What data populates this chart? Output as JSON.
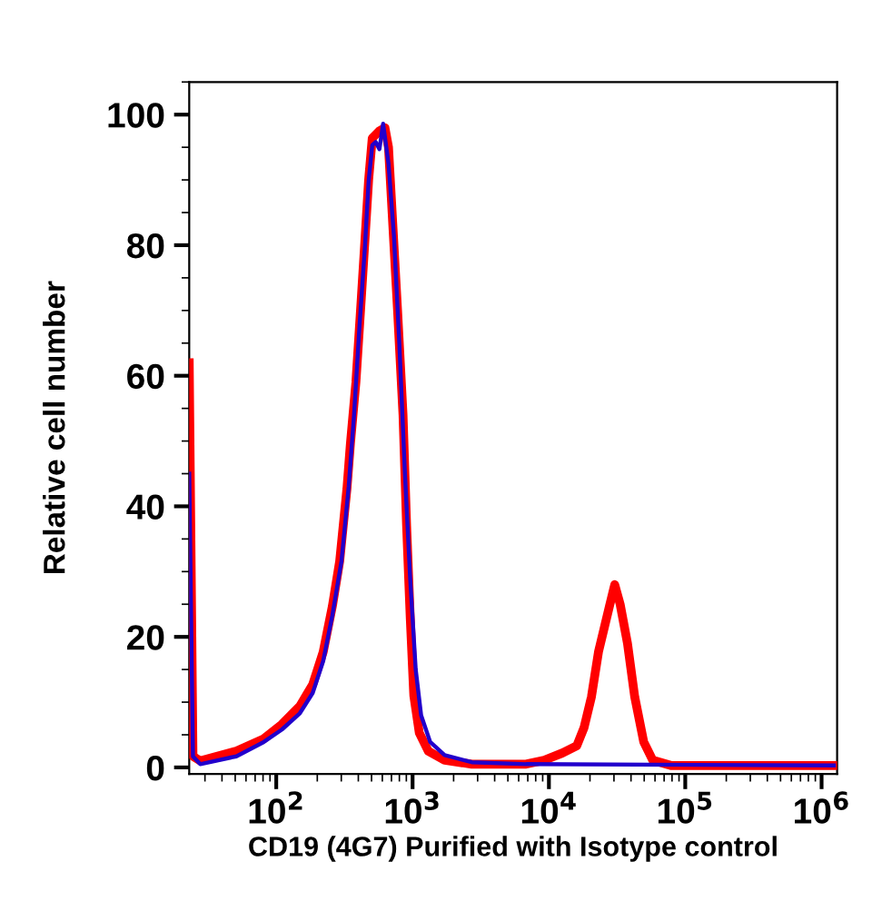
{
  "chart_data": {
    "type": "line",
    "xlabel": "CD19 (4G7) Purified with Isotype control",
    "ylabel": "Relative cell number",
    "log": "x",
    "xlim": [
      23,
      1300000
    ],
    "ylim": [
      -1,
      105
    ],
    "xticks": [
      {
        "value": 100,
        "label": "10$^{2}$"
      },
      {
        "value": 1000,
        "label": "10$^{3}$"
      },
      {
        "value": 10000,
        "label": "10$^{4}$"
      },
      {
        "value": 100000,
        "label": "10$^{5}$"
      },
      {
        "value": 1000000,
        "label": "10$^{6}$"
      }
    ],
    "yticks": [
      0,
      20,
      40,
      60,
      80,
      100
    ],
    "grid": false,
    "series": [
      {
        "color": "#2200cc",
        "x": [
          23,
          24.5,
          27.7,
          51,
          81,
          110,
          149,
          185,
          221,
          258,
          301,
          340,
          372,
          408,
          448,
          476,
          506,
          537,
          571,
          608,
          666,
          730,
          800,
          877,
          961,
          1054,
          1155,
          1346,
          1718,
          2719,
          6800,
          1230000
        ],
        "values": [
          45,
          1.7,
          0.5,
          1.7,
          3.9,
          5.8,
          8.3,
          11.4,
          16.3,
          23.3,
          31.6,
          43,
          54,
          67.6,
          80,
          89.8,
          95.3,
          95.8,
          94.7,
          98.6,
          92.5,
          81.4,
          64.8,
          45.4,
          28.8,
          15,
          8,
          3.9,
          1.9,
          0.8,
          0.5,
          0.3
        ]
      },
      {
        "color": "#ff0000",
        "x": [
          23,
          24.5,
          27.7,
          51,
          81,
          110,
          149,
          185,
          221,
          258,
          292,
          330,
          350,
          384,
          421,
          448,
          476,
          506,
          571,
          627,
          666,
          708,
          776,
          851,
          904,
          961,
          1021,
          1120,
          1305,
          1718,
          2719,
          6800,
          9230,
          12530,
          16000,
          18100,
          20500,
          23100,
          27800,
          30400,
          33300,
          37700,
          42600,
          49600,
          57800,
          78500,
          1230000
        ],
        "values": [
          62,
          1.7,
          1,
          2.5,
          4.4,
          6.6,
          9.4,
          12.7,
          17.7,
          24.7,
          31.6,
          42.7,
          49.6,
          59,
          72,
          81,
          90,
          96.4,
          97.5,
          98,
          95,
          85,
          70,
          54,
          37,
          23,
          11,
          5.3,
          2.5,
          1.1,
          0.5,
          0.5,
          1.1,
          2.2,
          3.3,
          6.1,
          10.8,
          17.7,
          24.7,
          28,
          25,
          19,
          10.8,
          3.9,
          1.1,
          0.3,
          0.3
        ]
      }
    ]
  }
}
